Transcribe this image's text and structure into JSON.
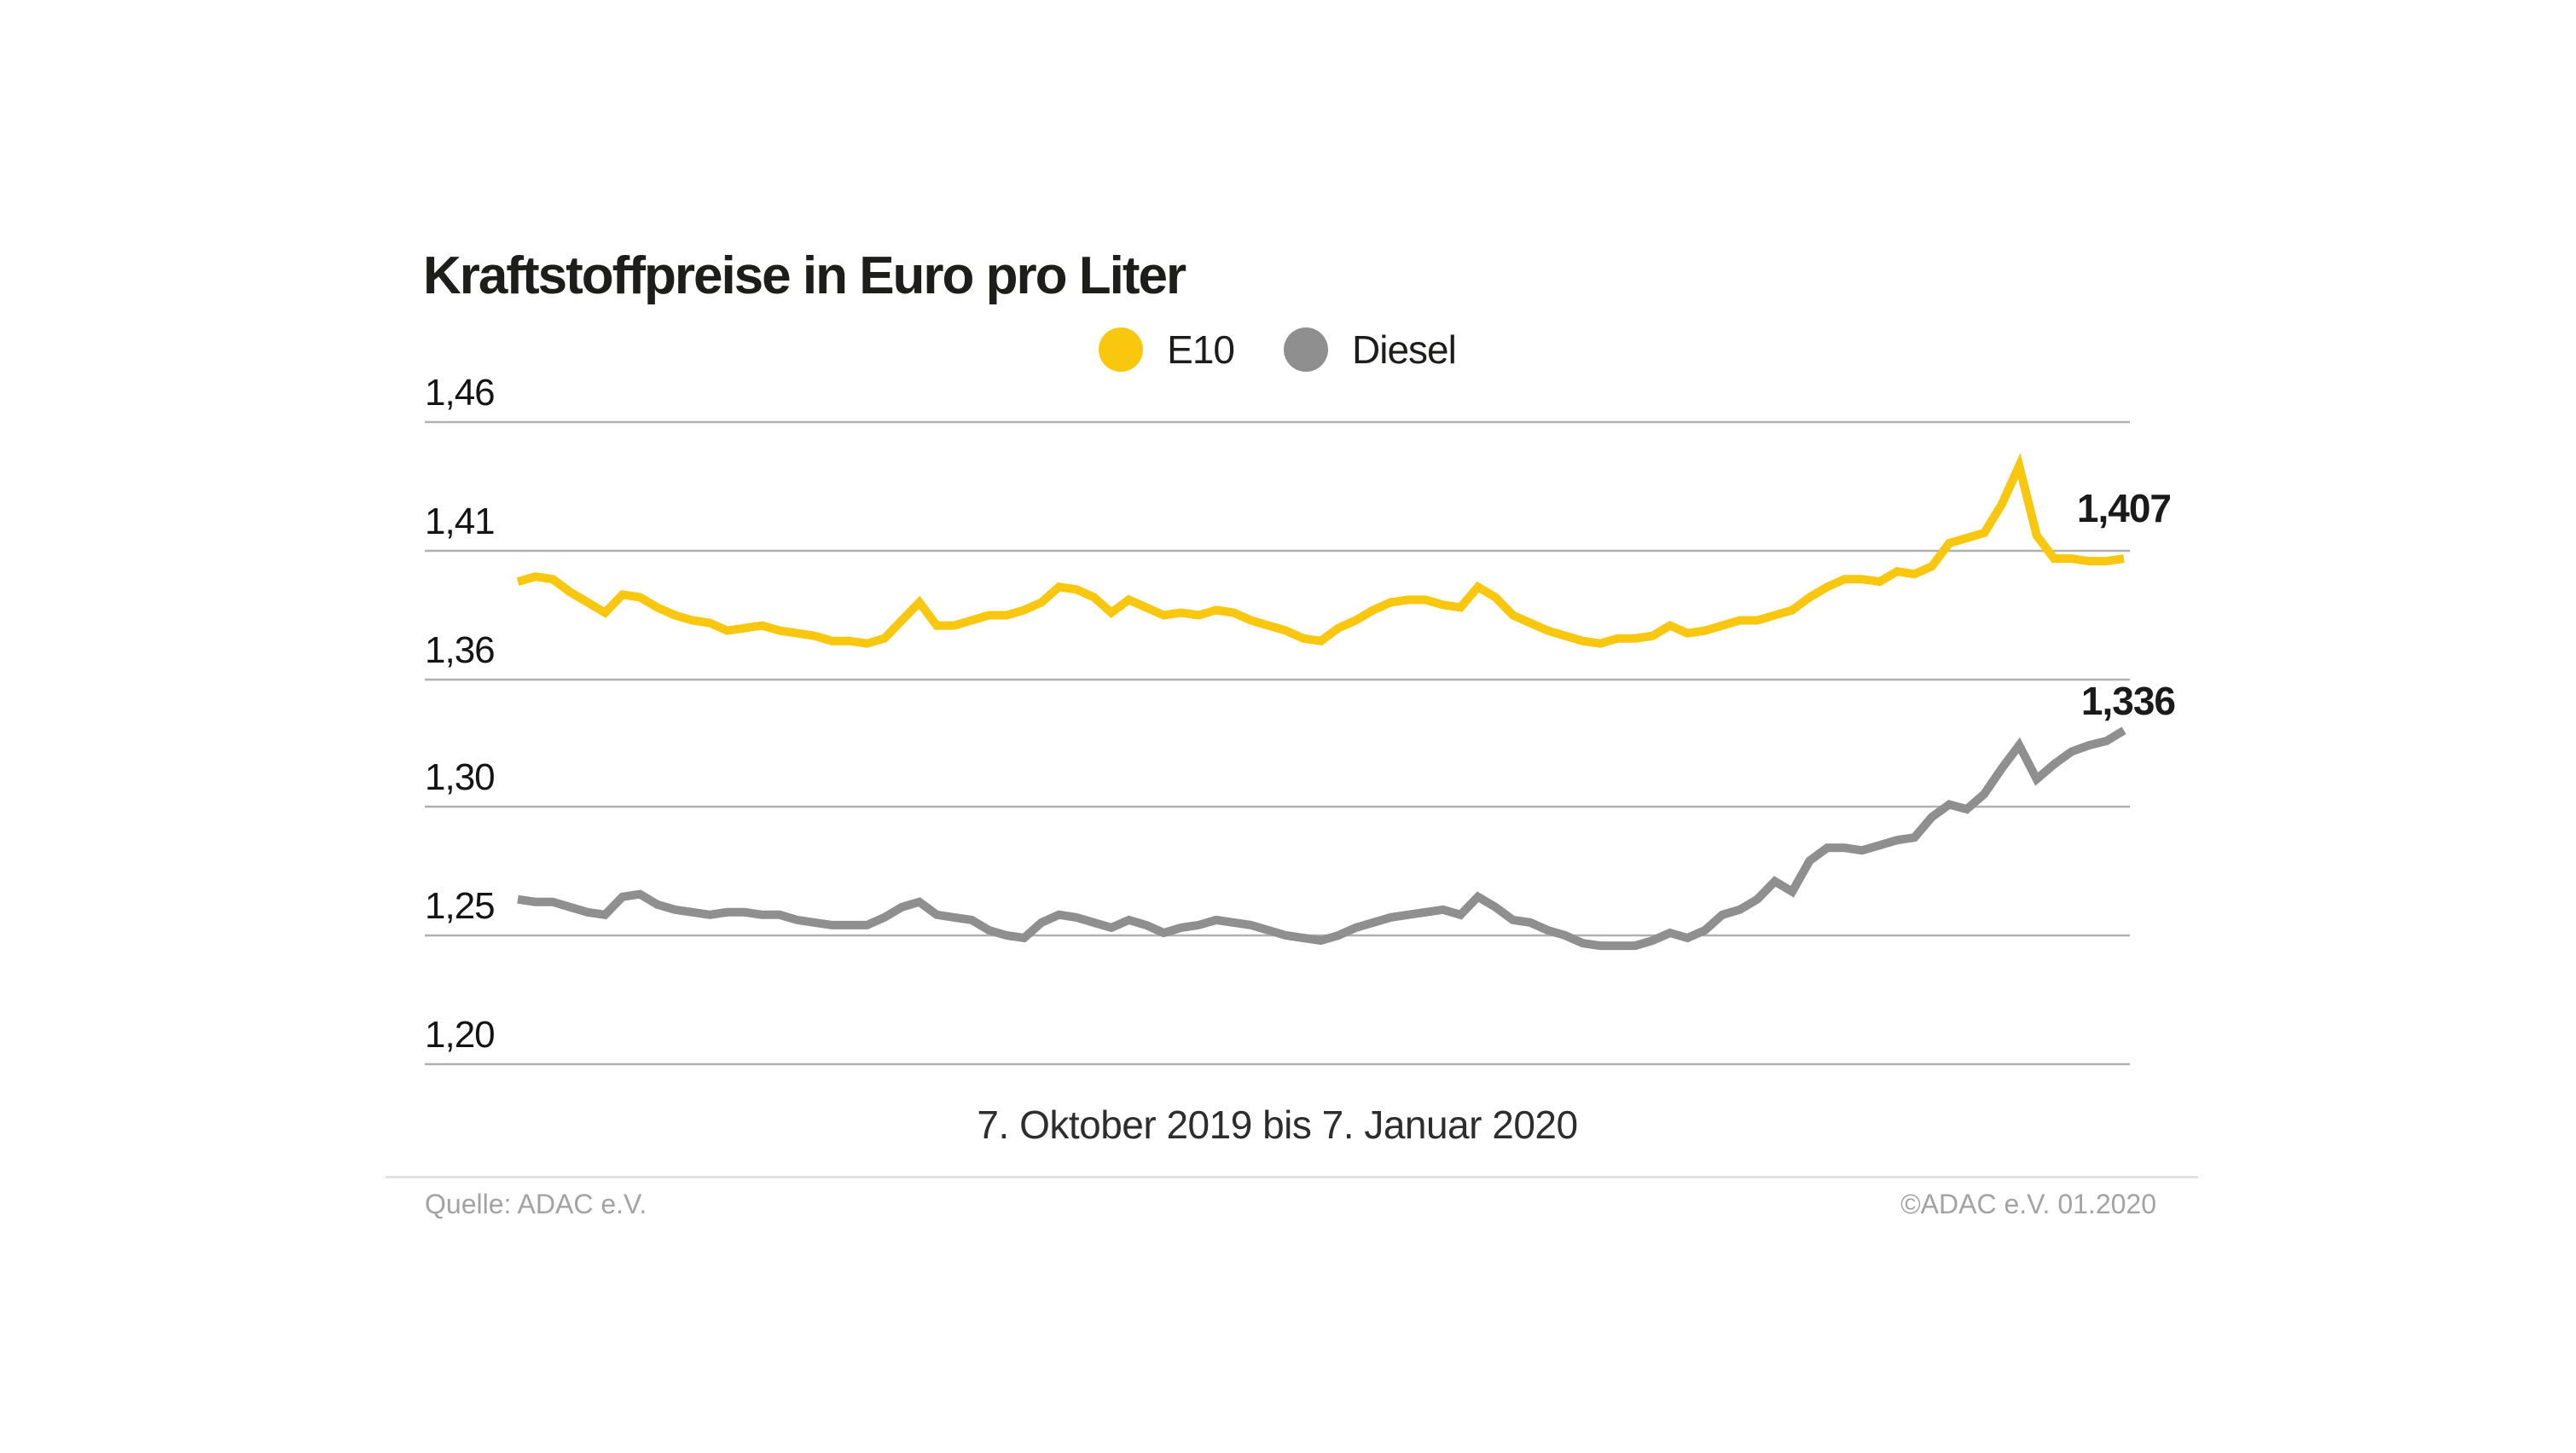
{
  "title": "Kraftstoffpreise in Euro pro Liter",
  "colors": {
    "e10": "#F8C70E",
    "diesel": "#8F8F8F",
    "gridline": "#b0b0b0",
    "divider": "#e2e2e2",
    "text": "#1d1d1b",
    "footer_text": "#a3a3a3"
  },
  "legend": [
    {
      "label": "E10",
      "color": "#F8C70E"
    },
    {
      "label": "Diesel",
      "color": "#8F8F8F"
    }
  ],
  "footer": {
    "source": "Quelle: ADAC e.V.",
    "copyright": "©ADAC e.V.  01.2020"
  },
  "chart_data": {
    "type": "line",
    "title": "Kraftstoffpreise in Euro pro Liter",
    "xlabel": "7. Oktober 2019 bis 7. Januar 2020",
    "ylabel": "Euro pro Liter",
    "grid": true,
    "legend_position": "top-center",
    "x_start": "7. Oktober 2019",
    "x_end": "7. Januar 2020",
    "y_axis": {
      "tick_labels": [
        "1,46",
        "1,41",
        "1,36",
        "1,30",
        "1,25",
        "1,20"
      ],
      "tick_values": [
        1.46,
        1.41,
        1.36,
        1.3,
        1.25,
        1.2
      ]
    },
    "series": [
      {
        "name": "E10",
        "color": "#F8C70E",
        "end_label": "1,407",
        "end_value": 1.407,
        "values": [
          1.398,
          1.4,
          1.399,
          1.394,
          1.39,
          1.386,
          1.393,
          1.392,
          1.388,
          1.385,
          1.383,
          1.382,
          1.379,
          1.38,
          1.381,
          1.379,
          1.378,
          1.377,
          1.375,
          1.375,
          1.374,
          1.376,
          1.383,
          1.39,
          1.381,
          1.381,
          1.383,
          1.385,
          1.385,
          1.387,
          1.39,
          1.396,
          1.395,
          1.392,
          1.386,
          1.391,
          1.388,
          1.385,
          1.386,
          1.385,
          1.387,
          1.386,
          1.383,
          1.381,
          1.379,
          1.376,
          1.375,
          1.38,
          1.383,
          1.387,
          1.39,
          1.391,
          1.391,
          1.389,
          1.388,
          1.396,
          1.392,
          1.385,
          1.382,
          1.379,
          1.377,
          1.375,
          1.374,
          1.376,
          1.376,
          1.377,
          1.381,
          1.378,
          1.379,
          1.381,
          1.383,
          1.383,
          1.385,
          1.387,
          1.392,
          1.396,
          1.399,
          1.399,
          1.398,
          1.402,
          1.401,
          1.404,
          1.413,
          1.415,
          1.417,
          1.428,
          1.443,
          1.416,
          1.407,
          1.407,
          1.406,
          1.406,
          1.407
        ]
      },
      {
        "name": "Diesel",
        "color": "#8F8F8F",
        "end_label": "1,336",
        "end_value": 1.336,
        "values": [
          1.264,
          1.263,
          1.263,
          1.261,
          1.259,
          1.258,
          1.265,
          1.266,
          1.262,
          1.26,
          1.259,
          1.258,
          1.259,
          1.259,
          1.258,
          1.258,
          1.256,
          1.255,
          1.254,
          1.254,
          1.254,
          1.257,
          1.261,
          1.263,
          1.258,
          1.257,
          1.256,
          1.252,
          1.25,
          1.249,
          1.255,
          1.258,
          1.257,
          1.255,
          1.253,
          1.256,
          1.254,
          1.251,
          1.253,
          1.254,
          1.256,
          1.255,
          1.254,
          1.252,
          1.25,
          1.249,
          1.248,
          1.25,
          1.253,
          1.255,
          1.257,
          1.258,
          1.259,
          1.26,
          1.258,
          1.265,
          1.261,
          1.256,
          1.255,
          1.252,
          1.25,
          1.247,
          1.246,
          1.246,
          1.246,
          1.248,
          1.251,
          1.249,
          1.252,
          1.258,
          1.26,
          1.264,
          1.271,
          1.267,
          1.279,
          1.284,
          1.284,
          1.283,
          1.285,
          1.287,
          1.288,
          1.296,
          1.301,
          1.299,
          1.306,
          1.318,
          1.329,
          1.313,
          1.32,
          1.326,
          1.329,
          1.331,
          1.336
        ]
      }
    ]
  }
}
